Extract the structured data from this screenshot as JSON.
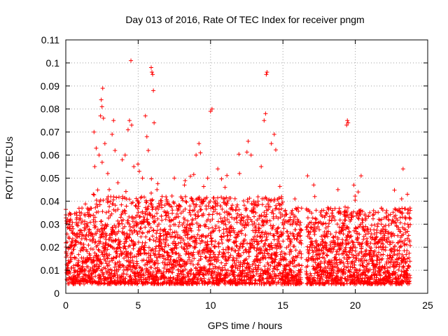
{
  "chart_data": {
    "type": "scatter",
    "title": "Day 013 of 2016, Rate Of TEC Index for receiver pngm",
    "xlabel": "GPS time / hours",
    "ylabel": "ROTI / TECUs",
    "xlim": [
      0,
      25
    ],
    "ylim": [
      0,
      0.11
    ],
    "xticks": [
      0,
      5,
      10,
      15,
      20,
      25
    ],
    "xtick_labels": [
      "0",
      "5",
      "10",
      "15",
      "20",
      "25"
    ],
    "yticks": [
      0,
      0.01,
      0.02,
      0.03,
      0.04,
      0.05,
      0.06,
      0.07,
      0.08,
      0.09,
      0.1,
      0.11
    ],
    "ytick_labels": [
      "0",
      "0.01",
      "0.02",
      "0.03",
      "0.04",
      "0.05",
      "0.06",
      "0.07",
      "0.08",
      "0.09",
      "0.1",
      "0.11"
    ],
    "grid": true,
    "marker": "+",
    "color": "#ff0000",
    "series": [
      {
        "name": "ROTI",
        "description_range": "dense points from 0 to 23.8 h, mostly between 0.005 and 0.03 TECU/s, data gap near 16.4 h",
        "points": [
          [
            0.1,
            0.012
          ],
          [
            0.2,
            0.034
          ],
          [
            0.5,
            0.028
          ],
          [
            1.0,
            0.022
          ],
          [
            1.3,
            0.03
          ],
          [
            1.7,
            0.037
          ],
          [
            1.9,
            0.043
          ],
          [
            1.95,
            0.07
          ],
          [
            2.0,
            0.055
          ],
          [
            2.1,
            0.063
          ],
          [
            2.3,
            0.06
          ],
          [
            2.4,
            0.077
          ],
          [
            2.45,
            0.084
          ],
          [
            2.5,
            0.081
          ],
          [
            2.55,
            0.089
          ],
          [
            2.6,
            0.076
          ],
          [
            2.7,
            0.065
          ],
          [
            2.9,
            0.052
          ],
          [
            3.0,
            0.045
          ],
          [
            3.2,
            0.069
          ],
          [
            3.3,
            0.075
          ],
          [
            3.4,
            0.062
          ],
          [
            3.6,
            0.048
          ],
          [
            3.9,
            0.058
          ],
          [
            4.1,
            0.06
          ],
          [
            4.3,
            0.071
          ],
          [
            4.4,
            0.075
          ],
          [
            4.5,
            0.101
          ],
          [
            4.55,
            0.073
          ],
          [
            4.7,
            0.055
          ],
          [
            5.0,
            0.04
          ],
          [
            5.3,
            0.05
          ],
          [
            5.5,
            0.077
          ],
          [
            5.6,
            0.068
          ],
          [
            5.7,
            0.062
          ],
          [
            5.9,
            0.098
          ],
          [
            5.95,
            0.096
          ],
          [
            6.0,
            0.095
          ],
          [
            6.05,
            0.088
          ],
          [
            6.1,
            0.074
          ],
          [
            6.3,
            0.045
          ],
          [
            7.0,
            0.04
          ],
          [
            7.5,
            0.05
          ],
          [
            8.2,
            0.047
          ],
          [
            8.7,
            0.041
          ],
          [
            9.0,
            0.06
          ],
          [
            9.2,
            0.065
          ],
          [
            9.3,
            0.061
          ],
          [
            9.8,
            0.05
          ],
          [
            10.0,
            0.079
          ],
          [
            10.1,
            0.08
          ],
          [
            10.5,
            0.054
          ],
          [
            11.0,
            0.046
          ],
          [
            12.0,
            0.052
          ],
          [
            12.6,
            0.066
          ],
          [
            12.8,
            0.06
          ],
          [
            13.5,
            0.055
          ],
          [
            13.7,
            0.075
          ],
          [
            13.8,
            0.078
          ],
          [
            13.85,
            0.095
          ],
          [
            13.9,
            0.096
          ],
          [
            14.2,
            0.065
          ],
          [
            14.4,
            0.069
          ],
          [
            14.7,
            0.039
          ],
          [
            15.5,
            0.03
          ],
          [
            16.2,
            0.025
          ],
          [
            16.3,
            0.012
          ],
          [
            16.7,
            0.051
          ],
          [
            17.2,
            0.042
          ],
          [
            18.0,
            0.035
          ],
          [
            18.8,
            0.045
          ],
          [
            19.4,
            0.073
          ],
          [
            19.45,
            0.075
          ],
          [
            19.5,
            0.074
          ],
          [
            19.9,
            0.047
          ],
          [
            20.2,
            0.044
          ],
          [
            20.4,
            0.051
          ],
          [
            21.0,
            0.035
          ],
          [
            21.8,
            0.03
          ],
          [
            22.3,
            0.032
          ],
          [
            22.9,
            0.036
          ],
          [
            23.2,
            0.041
          ],
          [
            23.3,
            0.054
          ],
          [
            23.6,
            0.043
          ],
          [
            23.8,
            0.036
          ]
        ]
      }
    ]
  }
}
